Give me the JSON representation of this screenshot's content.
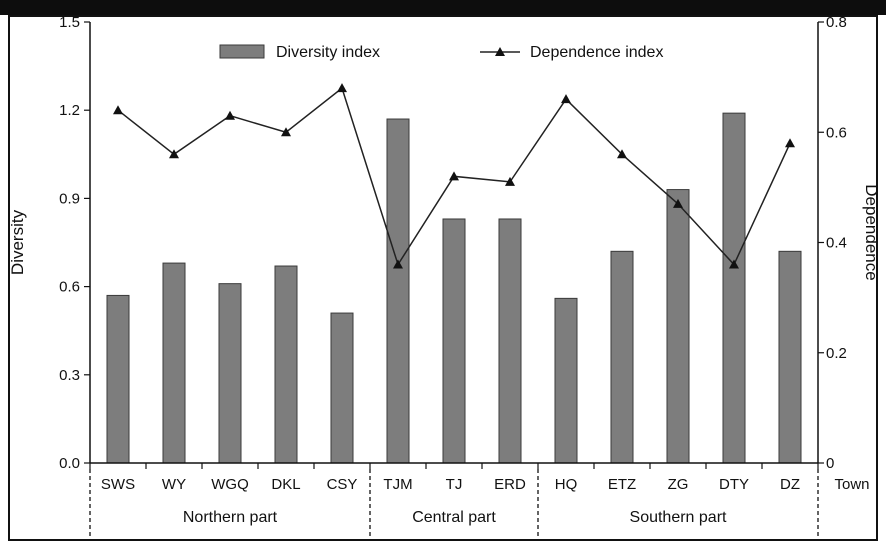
{
  "chart_data": {
    "type": "bar+line",
    "categories": [
      "SWS",
      "WY",
      "WGQ",
      "DKL",
      "CSY",
      "TJM",
      "TJ",
      "ERD",
      "HQ",
      "ETZ",
      "ZG",
      "DTY",
      "DZ"
    ],
    "series": [
      {
        "name": "Diversity index",
        "kind": "bar",
        "axis": "left",
        "values": [
          0.57,
          0.68,
          0.61,
          0.67,
          0.51,
          1.17,
          0.83,
          0.83,
          0.56,
          0.72,
          0.93,
          1.19,
          0.72
        ]
      },
      {
        "name": "Dependence index",
        "kind": "line",
        "axis": "right",
        "values": [
          0.64,
          0.56,
          0.63,
          0.6,
          0.68,
          0.36,
          0.52,
          0.51,
          0.66,
          0.56,
          0.47,
          0.36,
          0.58
        ]
      }
    ],
    "ylabel": "Diversity",
    "y2label": "Dependence",
    "xlabel": "Town",
    "ylim": [
      0,
      1.5
    ],
    "y2lim": [
      0,
      0.8
    ],
    "yticks": [
      "0.0",
      "0.3",
      "0.6",
      "0.9",
      "1.2",
      "1.5"
    ],
    "y2ticks": [
      "0",
      "0.2",
      "0.4",
      "0.6",
      "0.8"
    ],
    "groups": [
      {
        "label": "Northern part",
        "count": 5
      },
      {
        "label": "Central part",
        "count": 3
      },
      {
        "label": "Southern part",
        "count": 5
      }
    ],
    "legend_position": "top",
    "grid": false,
    "colors": {
      "bar": "#7d7d7d",
      "bar_edge": "#3a3a3a",
      "line": "#222222"
    }
  }
}
